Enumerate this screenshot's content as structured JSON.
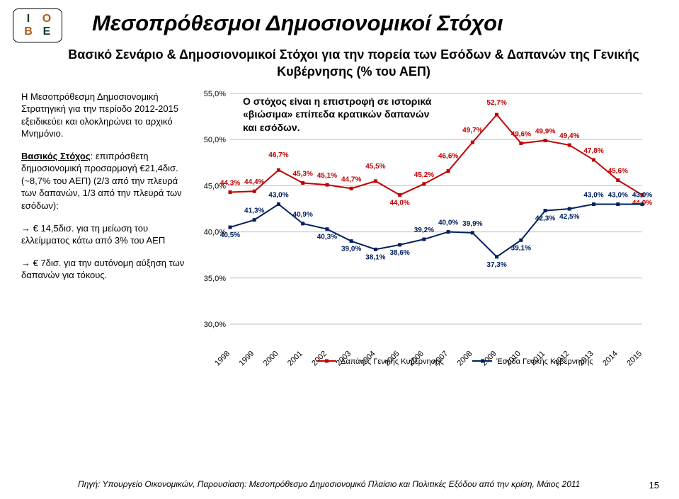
{
  "logo": {
    "letters": [
      "I",
      "O",
      "B",
      "E"
    ]
  },
  "title": "Μεσοπρόθεσμοι Δημοσιονομικοί Στόχοι",
  "subtitle": "Βασικό Σενάριο & Δημοσιονομικοί Στόχοι για την πορεία των Εσόδων & Δαπανών της Γενικής Κυβέρνησης (% του ΑΕΠ)",
  "left_text": {
    "p1": "Η Μεσοπρόθεσμη Δημοσιονομική Στρατηγική για την περίοδο 2012-2015 εξειδικεύει και ολοκληρώνει το αρχικό Μνημόνιο.",
    "p2_bold": "Βασικός Στόχος",
    "p2_rest": ": επιπρόσθετη δημοσιονομική προσαρμογή €21,4δισ. (~8,7% του ΑΕΠ) (2/3 από την πλευρά των δαπανών, 1/3 από την πλευρά των εσόδων):",
    "p3": "→ € 14,5δισ. για τη μείωση του ελλείμματος κάτω από 3% του ΑΕΠ",
    "p4": "→ € 7δισ. για την αυτόνομη αύξηση των δαπανών για τόκους."
  },
  "annotation": "Ο στόχος είναι η επιστροφή σε ιστορικά «βιώσιμα» επίπεδα κρατικών δαπανών και εσόδων.",
  "chart": {
    "years": [
      "1998",
      "1999",
      "2000",
      "2001",
      "2002",
      "2003",
      "2004",
      "2005",
      "2006",
      "2007",
      "2008",
      "2009",
      "2010",
      "2011",
      "2012",
      "2013",
      "2014",
      "2015"
    ],
    "ylim": [
      30.0,
      55.0
    ],
    "ytick_step": 5.0,
    "series": [
      {
        "name": "Δαπάνες Γενικής Κυβέρνησης",
        "color": "#c00000",
        "values": [
          44.3,
          44.4,
          46.7,
          45.3,
          45.1,
          44.7,
          45.5,
          44.0,
          45.2,
          46.6,
          49.7,
          52.7,
          49.6,
          49.9,
          49.4,
          47.8,
          45.6,
          44.0
        ],
        "label_dy": [
          -10,
          -10,
          -18,
          -10,
          -10,
          -10,
          -18,
          14,
          -10,
          -18,
          -14,
          -14,
          -10,
          -10,
          -10,
          -10,
          -10,
          14
        ]
      },
      {
        "name": "Έσοδα Γενικής Κυβέρνησης",
        "color": "#002060",
        "values": [
          40.5,
          41.3,
          43.0,
          40.9,
          40.3,
          39.0,
          38.1,
          38.6,
          39.2,
          40.0,
          39.9,
          37.3,
          39.1,
          42.3,
          42.5,
          43.0,
          43.0,
          43.0
        ],
        "label_dy": [
          14,
          -10,
          -10,
          -10,
          14,
          14,
          14,
          14,
          -10,
          -10,
          -10,
          14,
          14,
          14,
          14,
          -10,
          -10,
          -10
        ]
      }
    ],
    "ylabel_fmt": "%",
    "label_fontsize": 10,
    "tick_fontsize": 11,
    "grid_color": "#bfbfbf",
    "line_width": 2.0
  },
  "source": "Πηγή: Υπουργείο Οικονομικών, Παρουσίαση: Μεσοπρόθεσμο Δημοσιονομικό Πλαίσιο και Πολιτικές Εξόδου από την κρίση, Μάιος 2011",
  "page_number": "15"
}
